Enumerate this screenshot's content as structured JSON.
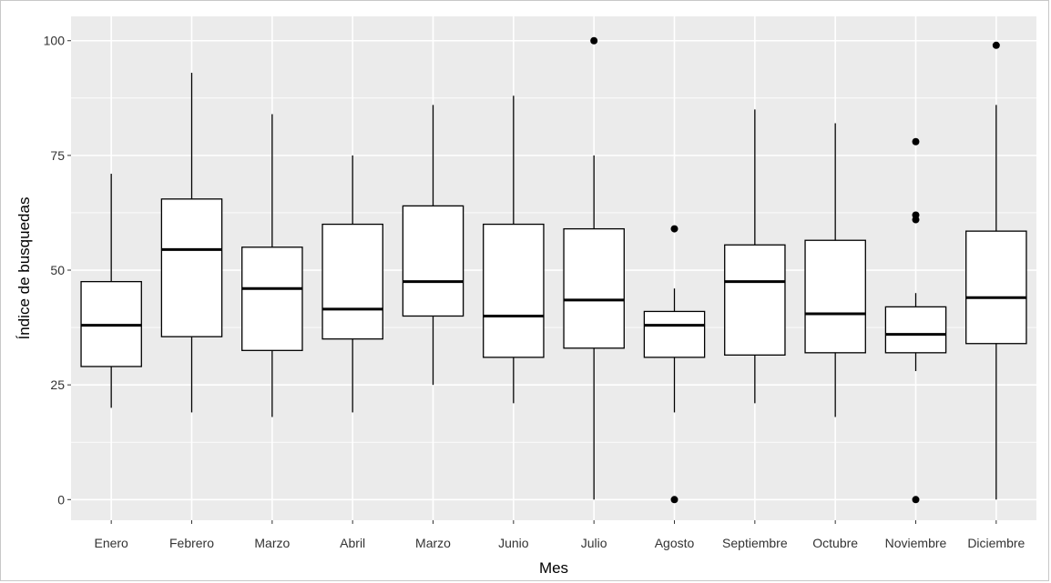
{
  "chart_data": {
    "type": "boxplot",
    "title": "",
    "xlabel": "Mes",
    "ylabel": "Índice de busquedas",
    "ylim": [
      -4.5,
      105.3
    ],
    "yticks": [
      0,
      25,
      50,
      75,
      100
    ],
    "grid": true,
    "legend": "none",
    "colors": {
      "panel": "#ebebeb",
      "grid": "#ffffff",
      "box_fill": "#ffffff",
      "box_stroke": "#000000",
      "tick_text": "#333333"
    },
    "categories": [
      "Enero",
      "Febrero",
      "Marzo",
      "Abril",
      "Marzo",
      "Junio",
      "Julio",
      "Agosto",
      "Septiembre",
      "Octubre",
      "Noviembre",
      "Diciembre"
    ],
    "boxes": [
      {
        "whisker_low": 20,
        "q1": 29,
        "median": 38,
        "q3": 47.5,
        "whisker_high": 71,
        "outliers": []
      },
      {
        "whisker_low": 19,
        "q1": 35.5,
        "median": 54.5,
        "q3": 65.5,
        "whisker_high": 93,
        "outliers": []
      },
      {
        "whisker_low": 18,
        "q1": 32.5,
        "median": 46,
        "q3": 55,
        "whisker_high": 84,
        "outliers": []
      },
      {
        "whisker_low": 19,
        "q1": 35,
        "median": 41.5,
        "q3": 60,
        "whisker_high": 75,
        "outliers": []
      },
      {
        "whisker_low": 25,
        "q1": 40,
        "median": 47.5,
        "q3": 64,
        "whisker_high": 86,
        "outliers": []
      },
      {
        "whisker_low": 21,
        "q1": 31,
        "median": 40,
        "q3": 60,
        "whisker_high": 88,
        "outliers": []
      },
      {
        "whisker_low": 0,
        "q1": 33,
        "median": 43.5,
        "q3": 59,
        "whisker_high": 75,
        "outliers": [
          100
        ]
      },
      {
        "whisker_low": 19,
        "q1": 31,
        "median": 38,
        "q3": 41,
        "whisker_high": 46,
        "outliers": [
          59,
          0
        ]
      },
      {
        "whisker_low": 21,
        "q1": 31.5,
        "median": 47.5,
        "q3": 55.5,
        "whisker_high": 85,
        "outliers": []
      },
      {
        "whisker_low": 18,
        "q1": 32,
        "median": 40.5,
        "q3": 56.5,
        "whisker_high": 82,
        "outliers": []
      },
      {
        "whisker_low": 28,
        "q1": 32,
        "median": 36,
        "q3": 42,
        "whisker_high": 45,
        "outliers": [
          78,
          62,
          61,
          0
        ]
      },
      {
        "whisker_low": 0,
        "q1": 34,
        "median": 44,
        "q3": 58.5,
        "whisker_high": 86,
        "outliers": [
          99
        ]
      }
    ]
  }
}
